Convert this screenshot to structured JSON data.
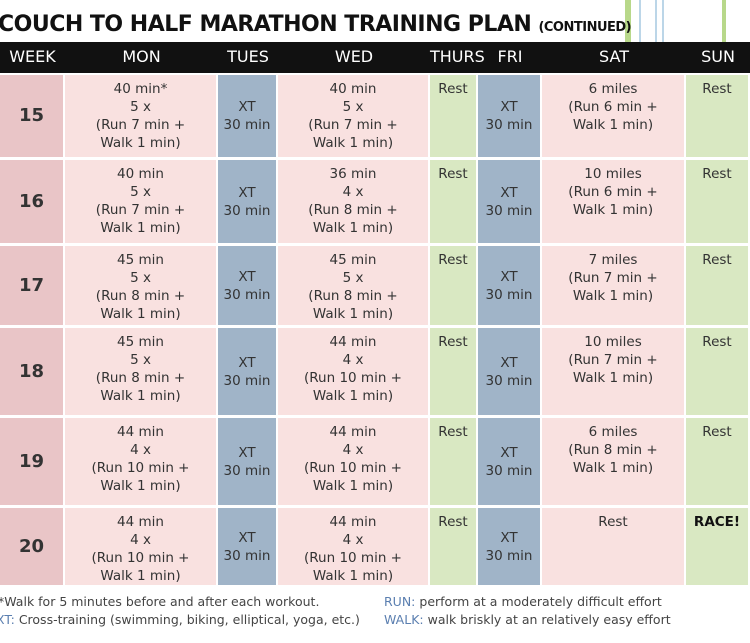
{
  "header": {
    "title": "COUCH TO HALF MARATHON TRAINING PLAN",
    "subtitle": "(CONTINUED)"
  },
  "table": {
    "columns": [
      "WEEK",
      "MON",
      "TUES",
      "WED",
      "THURS",
      "FRI",
      "SAT",
      "SUN"
    ],
    "rows": [
      [
        [
          "15"
        ],
        [
          "40 min*",
          "5 x",
          "(Run 7 min +",
          "Walk 1 min)"
        ],
        [
          "XT",
          "30 min"
        ],
        [
          "40 min",
          "5 x",
          "(Run 7 min +",
          "Walk 1 min)"
        ],
        [
          "Rest"
        ],
        [
          "XT",
          "30 min"
        ],
        [
          "6 miles",
          "(Run 6 min +",
          "Walk 1 min)"
        ],
        [
          "Rest"
        ]
      ],
      [
        [
          "16"
        ],
        [
          "40 min",
          "5 x",
          "(Run 7 min +",
          "Walk 1 min)"
        ],
        [
          "XT",
          "30 min"
        ],
        [
          "36 min",
          "4 x",
          "(Run 8 min +",
          "Walk 1 min)"
        ],
        [
          "Rest"
        ],
        [
          "XT",
          "30 min"
        ],
        [
          "10 miles",
          "(Run 6 min +",
          "Walk 1 min)"
        ],
        [
          "Rest"
        ]
      ],
      [
        [
          "17"
        ],
        [
          "45 min",
          "5 x",
          "(Run 8 min +",
          "Walk 1 min)"
        ],
        [
          "XT",
          "30 min"
        ],
        [
          "45 min",
          "5 x",
          "(Run 8 min +",
          "Walk 1 min)"
        ],
        [
          "Rest"
        ],
        [
          "XT",
          "30 min"
        ],
        [
          "7 miles",
          "(Run 7 min +",
          "Walk 1 min)"
        ],
        [
          "Rest"
        ]
      ],
      [
        [
          "18"
        ],
        [
          "45 min",
          "5 x",
          "(Run 8 min +",
          "Walk 1 min)"
        ],
        [
          "XT",
          "30 min"
        ],
        [
          "44 min",
          "4 x",
          "(Run 10 min +",
          "Walk 1 min)"
        ],
        [
          "Rest"
        ],
        [
          "XT",
          "30 min"
        ],
        [
          "10 miles",
          "(Run 7 min +",
          "Walk 1 min)"
        ],
        [
          "Rest"
        ]
      ],
      [
        [
          "19"
        ],
        [
          "44 min",
          "4 x",
          "(Run 10 min +",
          "Walk 1 min)"
        ],
        [
          "XT",
          "30 min"
        ],
        [
          "44 min",
          "4 x",
          "(Run 10 min +",
          "Walk 1 min)"
        ],
        [
          "Rest"
        ],
        [
          "XT",
          "30 min"
        ],
        [
          "6 miles",
          "(Run 8 min +",
          "Walk 1 min)"
        ],
        [
          "Rest"
        ]
      ],
      [
        [
          "20"
        ],
        [
          "44 min",
          "4 x",
          "(Run 10 min +",
          "Walk 1 min)"
        ],
        [
          "XT",
          "30 min"
        ],
        [
          "44 min",
          "4 x",
          "(Run 10 min +",
          "Walk 1 min)"
        ],
        [
          "Rest"
        ],
        [
          "XT",
          "30 min"
        ],
        [
          "Rest"
        ],
        [
          "RACE!"
        ]
      ]
    ]
  },
  "footnotes": {
    "walk_note": "*Walk for 5 minutes before and after each workout.",
    "xt": {
      "label": "XT:",
      "text": "Cross-training (swimming, biking, elliptical, yoga, etc.)"
    },
    "run": {
      "label": "RUN:",
      "text": "perform at a moderately difficult effort"
    },
    "walk": {
      "label": "WALK:",
      "text": "walk briskly at an relatively easy effort"
    }
  }
}
